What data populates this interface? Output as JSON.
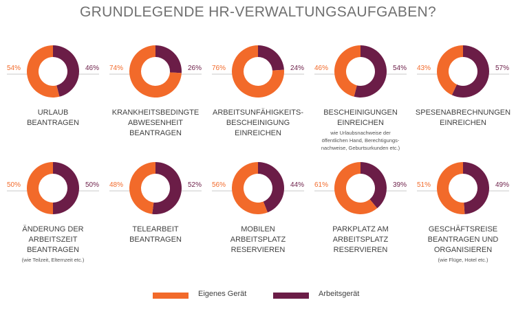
{
  "title": "GRUNDLEGENDE HR-VERWALTUNGSAUFGABEN?",
  "legend": {
    "own_label": "Eigenes Gerät",
    "work_label": "Arbeitsgerät"
  },
  "colors": {
    "own": "#f26a2a",
    "work": "#6b1d47",
    "divider": "#c9c9c9",
    "text": "#404040"
  },
  "chart_data": {
    "type": "pie",
    "series_names": [
      "Eigenes Gerät",
      "Arbeitsgerät"
    ],
    "charts": [
      {
        "label": "URLAUB\nBEANTRAGEN",
        "note": "",
        "own": 54,
        "work": 46,
        "own_label": "54%",
        "work_label": "46%"
      },
      {
        "label": "KRANKHEITSBEDINGTE\nABWESENHEIT\nBEANTRAGEN",
        "note": "",
        "own": 74,
        "work": 26,
        "own_label": "74%",
        "work_label": "26%"
      },
      {
        "label": "ARBEITSUNFÄHIGKEITS-\nBESCHEINIGUNG\nEINREICHEN",
        "note": "",
        "own": 76,
        "work": 24,
        "own_label": "76%",
        "work_label": "24%"
      },
      {
        "label": "BESCHEINIGUNGEN\nEINREICHEN",
        "note": "wie Urlaubsnachweise der\nöffentlichen Hand, Berechtigungs-\nnachweise, Geburtsurkunden etc.)",
        "own": 46,
        "work": 54,
        "own_label": "46%",
        "work_label": "54%"
      },
      {
        "label": "SPESENABRECHNUNGEN\nEINREICHEN",
        "note": "",
        "own": 43,
        "work": 57,
        "own_label": "43%",
        "work_label": "57%"
      },
      {
        "label": "ÄNDERUNG DER\nARBEITSZEIT\nBEANTRAGEN",
        "note": "(wie Teilzeit, Elternzeit etc.)",
        "own": 50,
        "work": 50,
        "own_label": "50%",
        "work_label": "50%"
      },
      {
        "label": "TELEARBEIT\nBEANTRAGEN",
        "note": "",
        "own": 48,
        "work": 52,
        "own_label": "48%",
        "work_label": "52%"
      },
      {
        "label": "MOBILEN\nARBEITSPLATZ\nRESERVIEREN",
        "note": "",
        "own": 56,
        "work": 44,
        "own_label": "56%",
        "work_label": "44%"
      },
      {
        "label": "PARKPLATZ AM\nARBEITSPLATZ\nRESERVIEREN",
        "note": "",
        "own": 61,
        "work": 39,
        "own_label": "61%",
        "work_label": "39%"
      },
      {
        "label": "GESCHÄFTSREISE\nBEANTRAGEN UND\nORGANISIEREN",
        "note": "(wie Flüge, Hotel etc.)",
        "own": 51,
        "work": 49,
        "own_label": "51%",
        "work_label": "49%"
      }
    ]
  }
}
